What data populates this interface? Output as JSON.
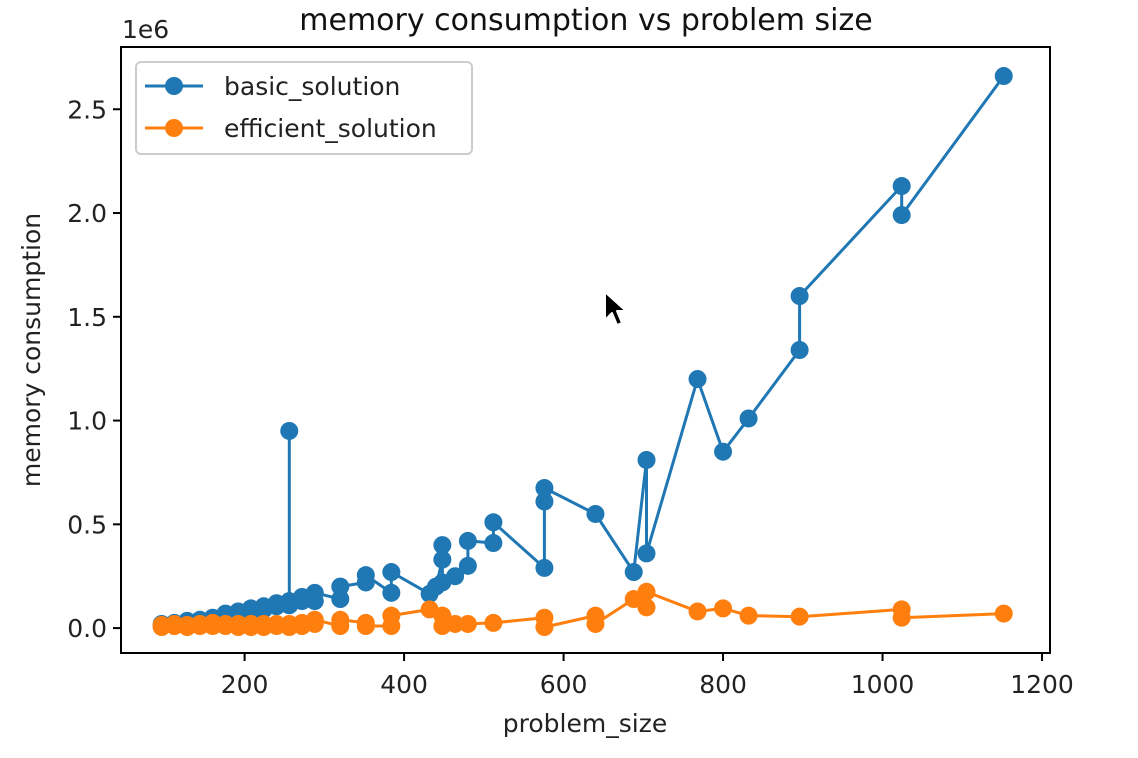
{
  "chart_data": {
    "type": "line",
    "title": "memory consumption vs problem size",
    "xlabel": "problem_size",
    "ylabel": "memory consumption",
    "y_offset_label": "1e6",
    "xlim": [
      45,
      1210
    ],
    "ylim": [
      -0.12,
      2.8
    ],
    "xticks": [
      200,
      400,
      600,
      800,
      1000,
      1200
    ],
    "yticks": [
      0.0,
      0.5,
      1.0,
      1.5,
      2.0,
      2.5
    ],
    "xtick_labels": [
      "200",
      "400",
      "600",
      "800",
      "1000",
      "1200"
    ],
    "ytick_labels": [
      "0.0",
      "0.5",
      "1.0",
      "1.5",
      "2.0",
      "2.5"
    ],
    "grid": false,
    "legend_position": "upper-left",
    "series": [
      {
        "name": "basic_solution",
        "color": "#1f77b4",
        "x": [
          96,
          96,
          112,
          112,
          128,
          128,
          144,
          144,
          160,
          160,
          176,
          176,
          192,
          192,
          208,
          208,
          224,
          224,
          240,
          240,
          256,
          256,
          256,
          272,
          272,
          288,
          288,
          320,
          320,
          352,
          352,
          384,
          384,
          432,
          440,
          448,
          448,
          448,
          464,
          480,
          480,
          512,
          512,
          576,
          576,
          576,
          640,
          688,
          704,
          704,
          768,
          800,
          832,
          896,
          896,
          1024,
          1024,
          1152
        ],
        "y": [
          0.01,
          0.02,
          0.02,
          0.025,
          0.025,
          0.035,
          0.03,
          0.04,
          0.04,
          0.05,
          0.05,
          0.07,
          0.06,
          0.08,
          0.075,
          0.095,
          0.09,
          0.105,
          0.105,
          0.12,
          0.13,
          0.95,
          0.11,
          0.13,
          0.15,
          0.13,
          0.17,
          0.14,
          0.2,
          0.22,
          0.255,
          0.17,
          0.27,
          0.165,
          0.2,
          0.33,
          0.4,
          0.22,
          0.25,
          0.3,
          0.42,
          0.41,
          0.51,
          0.29,
          0.61,
          0.675,
          0.55,
          0.27,
          0.81,
          0.36,
          1.2,
          0.85,
          1.01,
          1.34,
          1.6,
          2.13,
          1.99,
          2.66
        ]
      },
      {
        "name": "efficient_solution",
        "color": "#ff7f0e",
        "x": [
          96,
          96,
          112,
          112,
          128,
          128,
          144,
          144,
          160,
          160,
          176,
          176,
          192,
          192,
          208,
          208,
          224,
          224,
          240,
          240,
          256,
          256,
          272,
          272,
          288,
          288,
          320,
          320,
          352,
          352,
          384,
          384,
          432,
          448,
          448,
          464,
          480,
          512,
          576,
          576,
          640,
          640,
          688,
          704,
          704,
          768,
          800,
          832,
          896,
          1024,
          1024,
          1152
        ],
        "y": [
          0.005,
          0.015,
          0.01,
          0.02,
          0.005,
          0.015,
          0.01,
          0.02,
          0.01,
          0.025,
          0.01,
          0.02,
          0.005,
          0.02,
          0.005,
          0.02,
          0.005,
          0.02,
          0.01,
          0.02,
          0.005,
          0.02,
          0.01,
          0.025,
          0.02,
          0.04,
          0.01,
          0.04,
          0.025,
          0.01,
          0.01,
          0.06,
          0.09,
          0.06,
          0.01,
          0.02,
          0.02,
          0.025,
          0.05,
          0.005,
          0.06,
          0.02,
          0.14,
          0.1,
          0.175,
          0.08,
          0.095,
          0.06,
          0.055,
          0.09,
          0.05,
          0.07
        ]
      }
    ]
  }
}
